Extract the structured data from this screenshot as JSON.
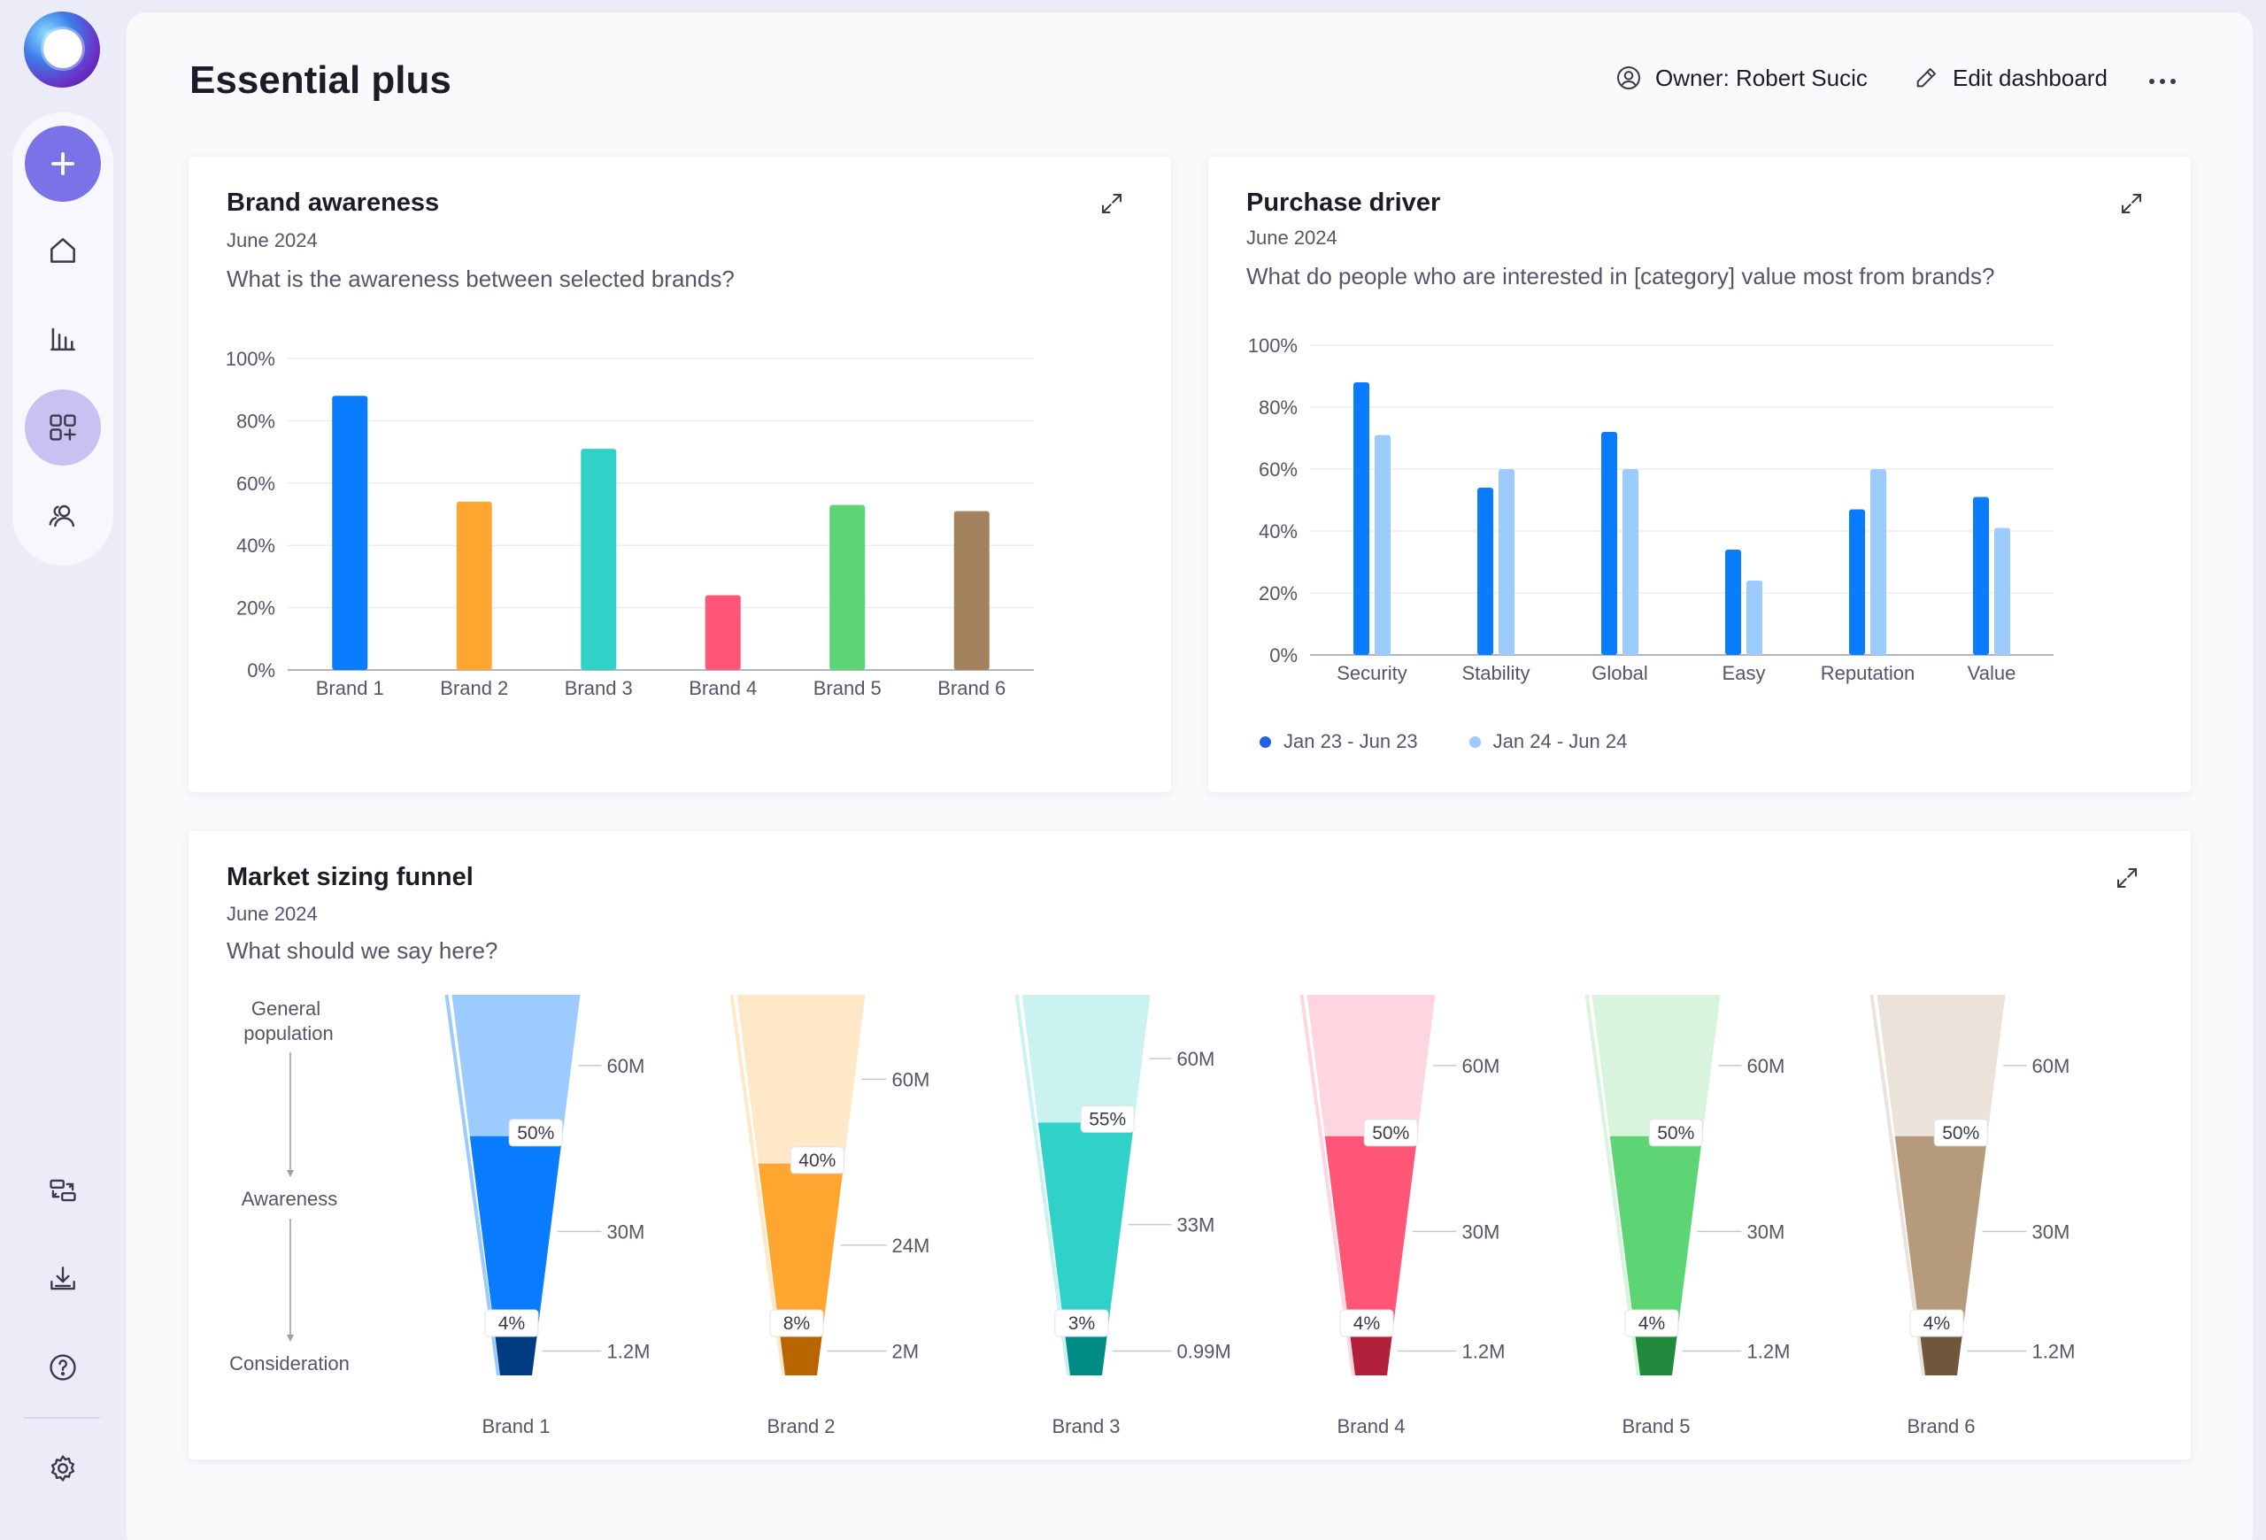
{
  "header": {
    "title": "Essential plus",
    "owner": "Owner: Robert Sucic",
    "edit": "Edit dashboard"
  },
  "sidebar": {
    "items": [
      {
        "name": "add-button",
        "icon": "plus-icon"
      },
      {
        "name": "home",
        "icon": "home-icon"
      },
      {
        "name": "reports",
        "icon": "bar-chart-icon"
      },
      {
        "name": "dashboards",
        "icon": "widgets-add-icon",
        "active": true
      },
      {
        "name": "people",
        "icon": "users-icon"
      }
    ],
    "bottom": [
      {
        "name": "switch",
        "icon": "transfer-icon"
      },
      {
        "name": "download",
        "icon": "download-icon"
      },
      {
        "name": "help",
        "icon": "help-icon"
      },
      {
        "name": "settings",
        "icon": "gear-icon"
      }
    ]
  },
  "cards": {
    "awareness": {
      "title": "Brand awareness",
      "date": "June 2024",
      "question": "What is the awareness between selected brands?"
    },
    "driver": {
      "title": "Purchase driver",
      "date": "June 2024",
      "question": "What do people who are interested in [category] value most from brands?"
    },
    "funnel": {
      "title": "Market sizing funnel",
      "date": "June 2024",
      "question": "What should we say here?"
    }
  },
  "chart_data": [
    {
      "type": "bar",
      "title": "Brand awareness",
      "categories": [
        "Brand 1",
        "Brand 2",
        "Brand 3",
        "Brand 4",
        "Brand 5",
        "Brand 6"
      ],
      "values": [
        88,
        54,
        71,
        24,
        53,
        51
      ],
      "colors": [
        "#0a7cff",
        "#ffa630",
        "#2fd1c9",
        "#ff5577",
        "#5ed575",
        "#a3835e"
      ],
      "yticks": [
        "0%",
        "20%",
        "40%",
        "60%",
        "80%",
        "100%"
      ],
      "ylim": [
        0,
        100
      ],
      "grid": true
    },
    {
      "type": "bar",
      "title": "Purchase driver",
      "categories": [
        "Security",
        "Stability",
        "Global",
        "Easy",
        "Reputation",
        "Value"
      ],
      "series": [
        {
          "name": "Jan 23 - Jun 23",
          "color": "#0a7cff",
          "values": [
            88,
            54,
            72,
            34,
            47,
            51
          ]
        },
        {
          "name": "Jan 24 - Jun 24",
          "color": "#9ccbff",
          "values": [
            71,
            60,
            60,
            24,
            60,
            41
          ]
        }
      ],
      "yticks": [
        "0%",
        "20%",
        "40%",
        "60%",
        "80%",
        "100%"
      ],
      "ylim": [
        0,
        100
      ],
      "legend": "bottom-left",
      "grid": true
    },
    {
      "type": "funnel",
      "title": "Market sizing funnel",
      "stages": [
        "General population",
        "Awareness",
        "Consideration"
      ],
      "funnels": [
        {
          "brand": "Brand 1",
          "colors": [
            "#9ccbff",
            "#0a7cff",
            "#003c82"
          ],
          "values": [
            "60M",
            "30M",
            "1.2M"
          ],
          "pcts": [
            "50%",
            "4%"
          ]
        },
        {
          "brand": "Brand 2",
          "colors": [
            "#ffe8c7",
            "#ffa630",
            "#b86500"
          ],
          "values": [
            "60M",
            "24M",
            "2M"
          ],
          "pcts": [
            "40%",
            "8%"
          ]
        },
        {
          "brand": "Brand 3",
          "colors": [
            "#c9f2f0",
            "#2fd1c9",
            "#008b85"
          ],
          "values": [
            "60M",
            "33M",
            "0.99M"
          ],
          "pcts": [
            "55%",
            "3%"
          ]
        },
        {
          "brand": "Brand 4",
          "colors": [
            "#ffd6df",
            "#ff5577",
            "#b3203c"
          ],
          "values": [
            "60M",
            "30M",
            "1.2M"
          ],
          "pcts": [
            "50%",
            "4%"
          ]
        },
        {
          "brand": "Brand 5",
          "colors": [
            "#d8f4dc",
            "#5ed575",
            "#218a3c"
          ],
          "values": [
            "60M",
            "30M",
            "1.2M"
          ],
          "pcts": [
            "50%",
            "4%"
          ]
        },
        {
          "brand": "Brand 6",
          "colors": [
            "#ebe2da",
            "#b59b7b",
            "#70573b"
          ],
          "values": [
            "60M",
            "30M",
            "1.2M"
          ],
          "pcts": [
            "50%",
            "4%"
          ]
        }
      ]
    }
  ]
}
